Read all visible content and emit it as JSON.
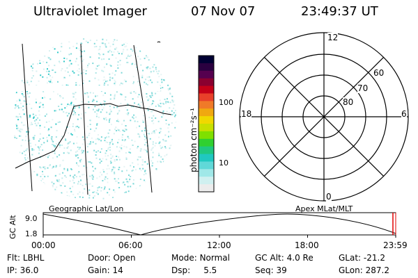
{
  "header": {
    "instrument": "Ultraviolet Imager",
    "date": "07 Nov 07",
    "time": "23:49:37 UT"
  },
  "colorbar": {
    "label": "photon cm⁻²s⁻¹",
    "ticks": [
      "100",
      "10"
    ],
    "colors": [
      "#000033",
      "#2a0040",
      "#55004f",
      "#8a0030",
      "#c40018",
      "#e8402a",
      "#f07a28",
      "#f0a810",
      "#f0d800",
      "#c8e000",
      "#80e000",
      "#30d030",
      "#20c880",
      "#20c8c0",
      "#60d8d8",
      "#a0e8e8",
      "#d0f0f0",
      "#ececec"
    ]
  },
  "polar": {
    "mlt_labels": {
      "top": "12",
      "left": "18",
      "right": "6",
      "bottom": "0"
    },
    "lat_labels": [
      "60",
      "70",
      "80"
    ]
  },
  "timeline": {
    "label_left": "Geographic Lat/Lon",
    "label_right": "Apex MLat/MLT",
    "y_axis_label": "GC Alt",
    "y_ticks": [
      "9.0",
      "1.8"
    ],
    "x_ticks": [
      "00:00",
      "06:00",
      "12:00",
      "18:00",
      "23:59"
    ]
  },
  "info": {
    "row1": [
      {
        "key": "Flt:",
        "value": "LBHL"
      },
      {
        "key": "Door:",
        "value": "Open"
      },
      {
        "key": "Mode:",
        "value": "Normal"
      },
      {
        "key": "GC Alt:",
        "value": "4.0 Re"
      },
      {
        "key": "GLat:",
        "value": "-21.2"
      }
    ],
    "row2": [
      {
        "key": "IP:",
        "value": "36.0"
      },
      {
        "key": "Gain:",
        "value": "14"
      },
      {
        "key": "Dsp:",
        "value": "5.5"
      },
      {
        "key": "Seq:",
        "value": "39"
      },
      {
        "key": "GLon:",
        "value": "287.2"
      }
    ]
  }
}
